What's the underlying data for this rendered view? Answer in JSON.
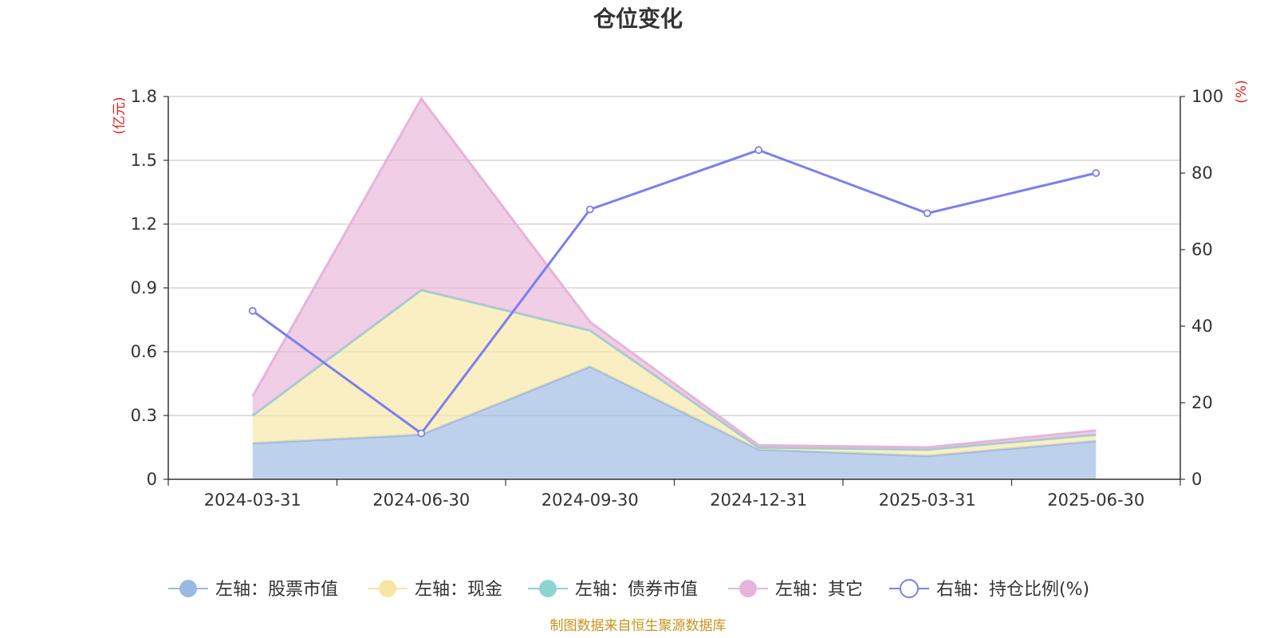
{
  "colors": {
    "stock": "#9bb8e2",
    "cash": "#f7e5a3",
    "bond": "#8fd3d1",
    "other": "#e6b4d9",
    "ratio": "#7b7ff0",
    "unit": "#e02020",
    "source": "#c8941c",
    "grid": "#cccccc",
    "axis": "#333333"
  },
  "chart_data": {
    "type": "area",
    "title": "仓位变化",
    "categories": [
      "2024-03-31",
      "2024-06-30",
      "2024-09-30",
      "2024-12-31",
      "2025-03-31",
      "2025-06-30"
    ],
    "left_axis": {
      "unit": "(亿元)",
      "ylim": [
        0,
        1.8
      ],
      "ticks": [
        "0",
        "0.3",
        "0.6",
        "0.9",
        "1.2",
        "1.5",
        "1.8"
      ]
    },
    "right_axis": {
      "unit": "(%)",
      "ylim": [
        0,
        100
      ],
      "ticks": [
        "0",
        "20",
        "40",
        "60",
        "80",
        "100"
      ]
    },
    "stacked_series": [
      {
        "key": "stock",
        "name": "左轴：股票市值",
        "values": [
          0.17,
          0.21,
          0.53,
          0.14,
          0.11,
          0.18
        ]
      },
      {
        "key": "cash",
        "name": "左轴：现金",
        "values": [
          0.13,
          0.68,
          0.17,
          0.01,
          0.03,
          0.03
        ]
      },
      {
        "key": "bond",
        "name": "左轴：债券市值",
        "values": [
          0,
          0,
          0,
          0,
          0,
          0
        ]
      },
      {
        "key": "other",
        "name": "左轴：其它",
        "values": [
          0.09,
          0.9,
          0.04,
          0.01,
          0.01,
          0.02
        ]
      }
    ],
    "line_series": {
      "key": "ratio",
      "name": "右轴：持仓比例(%)",
      "values": [
        44,
        12,
        70.5,
        86,
        69.5,
        80
      ]
    }
  },
  "source": "制图数据来自恒生聚源数据库"
}
